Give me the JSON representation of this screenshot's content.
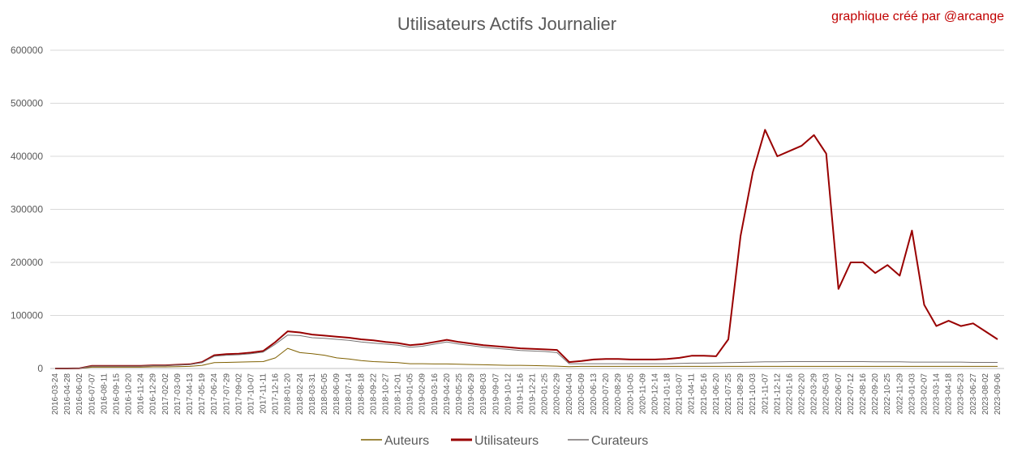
{
  "chart_data": {
    "type": "line",
    "title": "Utilisateurs Actifs Journalier",
    "credit": "graphique créé par @arcange",
    "xlabel": "",
    "ylabel": "",
    "ylim": [
      0,
      600000
    ],
    "y_ticks": [
      "0",
      "100000",
      "200000",
      "300000",
      "400000",
      "500000",
      "600000"
    ],
    "grid": true,
    "legend_position": "bottom",
    "x": [
      "2016-03-24",
      "2016-04-28",
      "2016-06-02",
      "2016-07-07",
      "2016-08-11",
      "2016-09-15",
      "2016-10-20",
      "2016-11-24",
      "2016-12-29",
      "2017-02-02",
      "2017-03-09",
      "2017-04-13",
      "2017-05-19",
      "2017-06-24",
      "2017-07-29",
      "2017-09-02",
      "2017-10-07",
      "2017-11-11",
      "2017-12-16",
      "2018-01-20",
      "2018-02-24",
      "2018-03-31",
      "2018-05-05",
      "2018-06-09",
      "2018-07-14",
      "2018-08-18",
      "2018-09-22",
      "2018-10-27",
      "2018-12-01",
      "2019-01-05",
      "2019-02-09",
      "2019-03-16",
      "2019-04-20",
      "2019-05-25",
      "2019-06-29",
      "2019-08-03",
      "2019-09-07",
      "2019-10-12",
      "2019-11-16",
      "2019-12-21",
      "2020-01-25",
      "2020-02-29",
      "2020-04-04",
      "2020-05-09",
      "2020-06-13",
      "2020-07-20",
      "2020-08-29",
      "2020-10-05",
      "2020-11-09",
      "2020-12-14",
      "2021-01-18",
      "2021-03-07",
      "2021-04-11",
      "2021-05-16",
      "2021-06-20",
      "2021-07-25",
      "2021-08-29",
      "2021-10-03",
      "2021-11-07",
      "2021-12-12",
      "2022-01-16",
      "2022-02-20",
      "2022-03-29",
      "2022-05-03",
      "2022-06-07",
      "2022-07-12",
      "2022-08-16",
      "2022-09-20",
      "2022-10-25",
      "2022-11-29",
      "2023-01-03",
      "2023-02-07",
      "2023-03-14",
      "2023-04-18",
      "2023-05-23",
      "2023-06-27",
      "2023-08-02",
      "2023-09-06"
    ],
    "series": [
      {
        "name": "Auteurs",
        "color": "#7f6000",
        "values": [
          0,
          0,
          200,
          2500,
          2500,
          2500,
          2500,
          2500,
          3000,
          3000,
          3500,
          4000,
          6000,
          11000,
          11500,
          12000,
          12500,
          13000,
          20000,
          38000,
          30000,
          28000,
          25000,
          20000,
          18000,
          15000,
          13000,
          12000,
          11000,
          9000,
          9000,
          8500,
          8500,
          8000,
          7500,
          7000,
          6500,
          6000,
          6000,
          5500,
          5000,
          4500,
          3500,
          4000,
          4000,
          4000,
          4000,
          4000,
          4000,
          4000,
          4000,
          4000,
          4000,
          4000,
          4000,
          4000,
          4000,
          4000,
          4000,
          4000,
          4000,
          4000,
          4000,
          4000,
          4000,
          4000,
          4000,
          4000,
          4000,
          4000,
          4000,
          4000,
          4000,
          4000,
          4000,
          4000,
          4000,
          4000
        ]
      },
      {
        "name": "Utilisateurs",
        "color": "#990000",
        "values": [
          0,
          0,
          500,
          5000,
          5000,
          5000,
          5000,
          5000,
          6000,
          6000,
          7000,
          8000,
          12000,
          25000,
          27000,
          28000,
          30000,
          33000,
          50000,
          70000,
          68000,
          64000,
          62000,
          60000,
          58000,
          55000,
          53000,
          50000,
          48000,
          44000,
          46000,
          50000,
          54000,
          50000,
          47000,
          44000,
          42000,
          40000,
          38000,
          37000,
          36000,
          35000,
          12000,
          14000,
          17000,
          18000,
          18000,
          17000,
          17000,
          17000,
          18000,
          20000,
          24000,
          24000,
          23000,
          55000,
          250000,
          370000,
          450000,
          400000,
          410000,
          420000,
          440000,
          405000,
          150000,
          200000,
          200000,
          180000,
          195000,
          175000,
          260000,
          120000,
          80000,
          90000,
          80000,
          85000,
          70000,
          55000
        ]
      },
      {
        "name": "Curateurs",
        "color": "#767171",
        "values": [
          0,
          0,
          400,
          4500,
          4500,
          4500,
          4500,
          4500,
          5500,
          5500,
          6500,
          7500,
          11000,
          23000,
          25000,
          26000,
          28000,
          31000,
          46000,
          63000,
          62000,
          58000,
          57000,
          55000,
          53000,
          50000,
          48000,
          46000,
          44000,
          40000,
          42000,
          46000,
          50000,
          46000,
          43000,
          40000,
          38000,
          36000,
          34000,
          33000,
          32000,
          30000,
          9000,
          9000,
          9000,
          9000,
          9000,
          9000,
          9000,
          9000,
          9000,
          9500,
          10000,
          10000,
          10500,
          11000,
          11500,
          12000,
          12500,
          12500,
          13000,
          13000,
          13000,
          13000,
          13000,
          13000,
          13000,
          12500,
          12500,
          12500,
          12000,
          12000,
          12000,
          12000,
          12000,
          11500,
          11500,
          11500
        ]
      }
    ]
  }
}
